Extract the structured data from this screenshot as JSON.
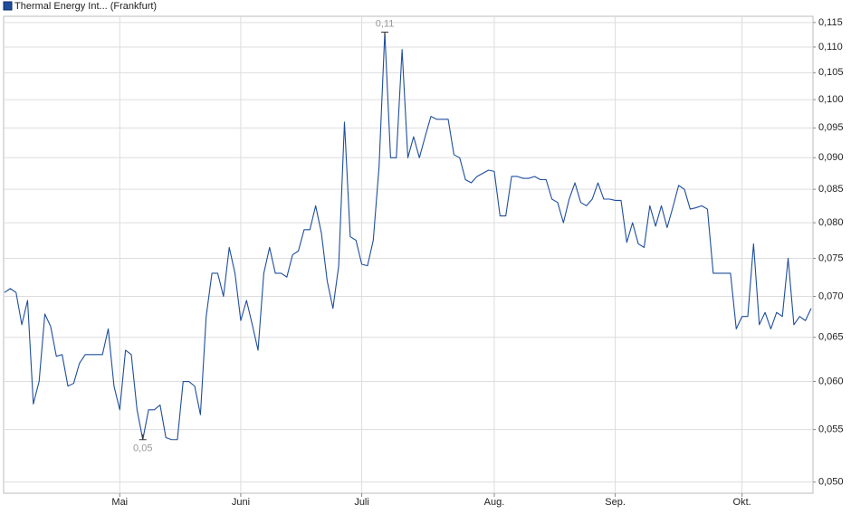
{
  "chart_data": {
    "type": "line",
    "series": [
      {
        "name": "Thermal Energy Int... (Frankfurt)",
        "color": "#1f4e9c",
        "values": [
          0.0705,
          0.071,
          0.0705,
          0.0665,
          0.0695,
          0.0576,
          0.06,
          0.0678,
          0.0663,
          0.0628,
          0.063,
          0.0595,
          0.0598,
          0.062,
          0.063,
          0.063,
          0.063,
          0.063,
          0.066,
          0.0595,
          0.057,
          0.0635,
          0.063,
          0.057,
          0.054,
          0.057,
          0.057,
          0.0575,
          0.0542,
          0.054,
          0.054,
          0.06,
          0.06,
          0.0595,
          0.0565,
          0.0675,
          0.073,
          0.073,
          0.07,
          0.0765,
          0.073,
          0.067,
          0.0695,
          0.0665,
          0.0635,
          0.073,
          0.0765,
          0.073,
          0.073,
          0.0725,
          0.0755,
          0.076,
          0.079,
          0.079,
          0.0825,
          0.0785,
          0.072,
          0.0685,
          0.074,
          0.096,
          0.078,
          0.0775,
          0.0742,
          0.074,
          0.0775,
          0.0885,
          0.113,
          0.09,
          0.09,
          0.1095,
          0.09,
          0.0935,
          0.09,
          0.0935,
          0.097,
          0.0965,
          0.0965,
          0.0965,
          0.0905,
          0.09,
          0.0865,
          0.086,
          0.087,
          0.0875,
          0.088,
          0.0878,
          0.081,
          0.081,
          0.087,
          0.087,
          0.0867,
          0.0867,
          0.087,
          0.0865,
          0.0865,
          0.0835,
          0.083,
          0.08,
          0.0835,
          0.086,
          0.083,
          0.0825,
          0.0835,
          0.086,
          0.0835,
          0.0835,
          0.0833,
          0.0833,
          0.0772,
          0.08,
          0.077,
          0.0765,
          0.0825,
          0.0795,
          0.0825,
          0.0793,
          0.0823,
          0.0856,
          0.085,
          0.082,
          0.0822,
          0.0825,
          0.082,
          0.073,
          0.073,
          0.073,
          0.073,
          0.066,
          0.0675,
          0.0675,
          0.077,
          0.0665,
          0.068,
          0.066,
          0.068,
          0.0675,
          0.075,
          0.0665,
          0.0675,
          0.067,
          0.0685
        ],
        "value_labels": [
          null,
          null,
          null,
          null,
          null,
          null,
          null,
          null,
          null,
          null,
          null,
          null,
          null,
          null,
          null,
          null,
          null,
          null,
          null,
          null,
          null,
          null,
          null,
          null,
          "0,05",
          null,
          null,
          null,
          null,
          null,
          null,
          null,
          null,
          null,
          null,
          null,
          null,
          null,
          null,
          null,
          null,
          null,
          null,
          null,
          null,
          null,
          null,
          null,
          null,
          null,
          null,
          null,
          null,
          null,
          null,
          null,
          null,
          null,
          null,
          null,
          null,
          null,
          null,
          null,
          null,
          null,
          "0,11",
          null,
          null,
          null,
          null,
          null,
          null,
          null,
          null,
          null,
          null,
          null,
          null,
          null,
          null,
          null,
          null,
          null,
          null,
          null,
          null,
          null,
          null,
          null,
          null,
          null,
          null,
          null,
          null,
          null,
          null,
          null,
          null,
          null,
          null,
          null,
          null,
          null,
          null,
          null,
          null,
          null,
          null,
          null,
          null,
          null,
          null,
          null,
          null,
          null,
          null,
          null,
          null,
          null,
          null,
          null,
          null,
          null,
          null,
          null,
          null,
          null,
          null,
          null,
          null,
          null,
          null,
          null,
          null,
          null,
          null,
          null,
          null,
          null,
          null
        ]
      }
    ],
    "categories": [
      null,
      null,
      null,
      null,
      null,
      null,
      null,
      null,
      null,
      null,
      null,
      null,
      null,
      null,
      null,
      null,
      null,
      null,
      null,
      null,
      "Mai",
      null,
      null,
      null,
      null,
      null,
      null,
      null,
      null,
      null,
      null,
      null,
      null,
      null,
      null,
      null,
      null,
      null,
      null,
      null,
      null,
      "Juni",
      null,
      null,
      null,
      null,
      null,
      null,
      null,
      null,
      null,
      null,
      null,
      null,
      null,
      null,
      null,
      null,
      null,
      null,
      null,
      null,
      "Juli",
      null,
      null,
      null,
      null,
      null,
      null,
      null,
      null,
      null,
      null,
      null,
      null,
      null,
      null,
      null,
      null,
      null,
      null,
      null,
      null,
      null,
      null,
      "Aug.",
      null,
      null,
      null,
      null,
      null,
      null,
      null,
      null,
      null,
      null,
      null,
      null,
      null,
      null,
      null,
      null,
      null,
      null,
      null,
      null,
      "Sep.",
      null,
      null,
      null,
      null,
      null,
      null,
      null,
      null,
      null,
      null,
      null,
      null,
      null,
      null,
      null,
      null,
      null,
      null,
      null,
      null,
      null,
      "Okt.",
      null,
      null,
      null,
      null,
      null,
      null,
      null,
      null,
      null,
      null,
      null,
      null
    ],
    "ylim": [
      0.049,
      0.1163
    ],
    "log_scale": true,
    "grid": true,
    "yticks": [
      {
        "value": 0.05,
        "label": "0,050"
      },
      {
        "value": 0.055,
        "label": "0,055"
      },
      {
        "value": 0.06,
        "label": "0,060"
      },
      {
        "value": 0.065,
        "label": "0,065"
      },
      {
        "value": 0.07,
        "label": "0,070"
      },
      {
        "value": 0.075,
        "label": "0,075"
      },
      {
        "value": 0.08,
        "label": "0,080"
      },
      {
        "value": 0.085,
        "label": "0,085"
      },
      {
        "value": 0.09,
        "label": "0,090"
      },
      {
        "value": 0.095,
        "label": "0,095"
      },
      {
        "value": 0.1,
        "label": "0,100"
      },
      {
        "value": 0.105,
        "label": "0,105"
      },
      {
        "value": 0.11,
        "label": "0,110"
      },
      {
        "value": 0.115,
        "label": "0,115"
      }
    ]
  }
}
